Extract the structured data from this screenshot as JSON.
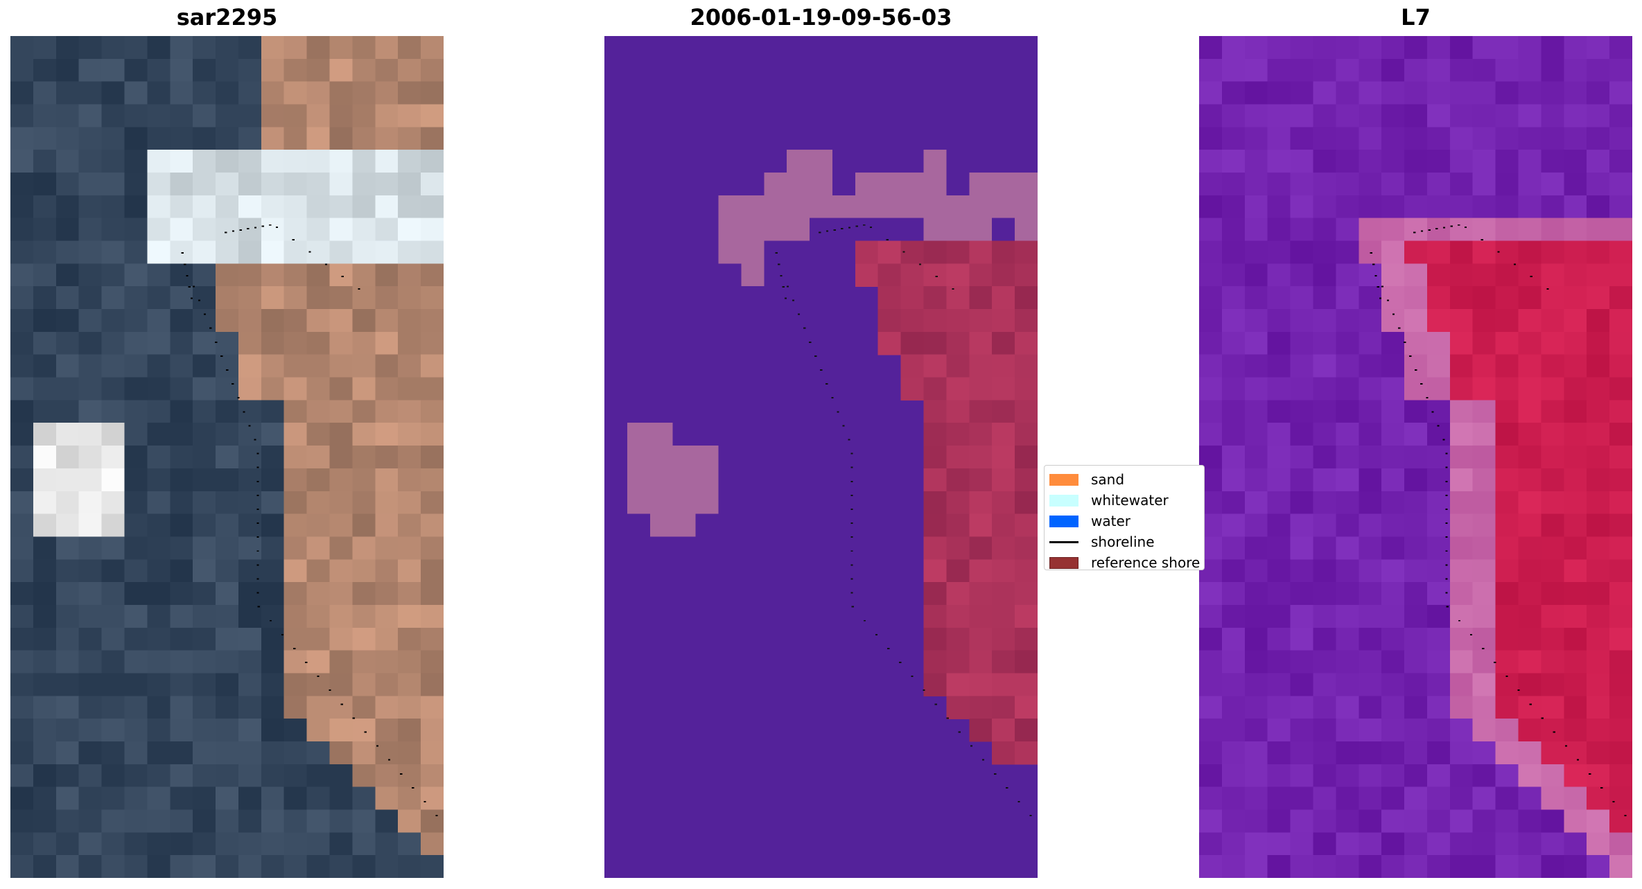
{
  "panels": [
    {
      "title": "sar2295",
      "kind": "rgb-image"
    },
    {
      "title": "2006-01-19-09-56-03",
      "kind": "classification"
    },
    {
      "title": "L7",
      "kind": "index-image"
    }
  ],
  "legend": {
    "items": [
      {
        "label": "sand",
        "color": "#ff8c3c",
        "type": "patch"
      },
      {
        "label": "whitewater",
        "color": "#c8ffff",
        "type": "patch"
      },
      {
        "label": "water",
        "color": "#0064ff",
        "type": "patch"
      },
      {
        "label": "shoreline",
        "color": "#000000",
        "type": "line"
      },
      {
        "label": "reference shore",
        "color": "#963232",
        "type": "patch"
      }
    ]
  }
}
